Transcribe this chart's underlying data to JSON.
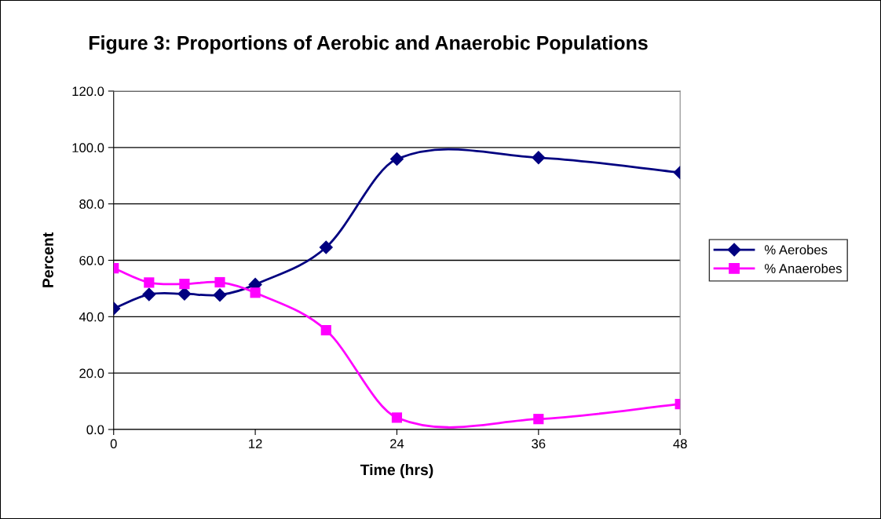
{
  "chart_data": {
    "type": "line",
    "title": "Figure 3: Proportions of Aerobic and Anaerobic Populations",
    "xlabel": "Time (hrs)",
    "ylabel": "Percent",
    "x": [
      0,
      3,
      6,
      9,
      12,
      18,
      24,
      36,
      48
    ],
    "series": [
      {
        "name": "% Aerobes",
        "color": "#000080",
        "marker": "diamond",
        "values": [
          42.9,
          47.9,
          48.1,
          47.7,
          51.4,
          64.6,
          95.9,
          96.4,
          91.1
        ]
      },
      {
        "name": "% Anaerobes",
        "color": "#ff00ff",
        "marker": "square",
        "values": [
          57.2,
          52.1,
          51.6,
          52.2,
          48.5,
          35.2,
          4.2,
          3.7,
          9.0
        ]
      }
    ],
    "xlim": [
      0,
      48
    ],
    "xticks": [
      0,
      12,
      24,
      36,
      48
    ],
    "ylim": [
      0,
      120
    ],
    "yticks": [
      {
        "value": 0,
        "label": "0.0"
      },
      {
        "value": 20,
        "label": "20.0"
      },
      {
        "value": 40,
        "label": "40.0"
      },
      {
        "value": 60,
        "label": "60.0"
      },
      {
        "value": 80,
        "label": "80.0"
      },
      {
        "value": 100,
        "label": "100.0"
      },
      {
        "value": 120,
        "label": "120.0"
      }
    ],
    "grid": "y",
    "legend": "right",
    "line_style": "solid"
  }
}
